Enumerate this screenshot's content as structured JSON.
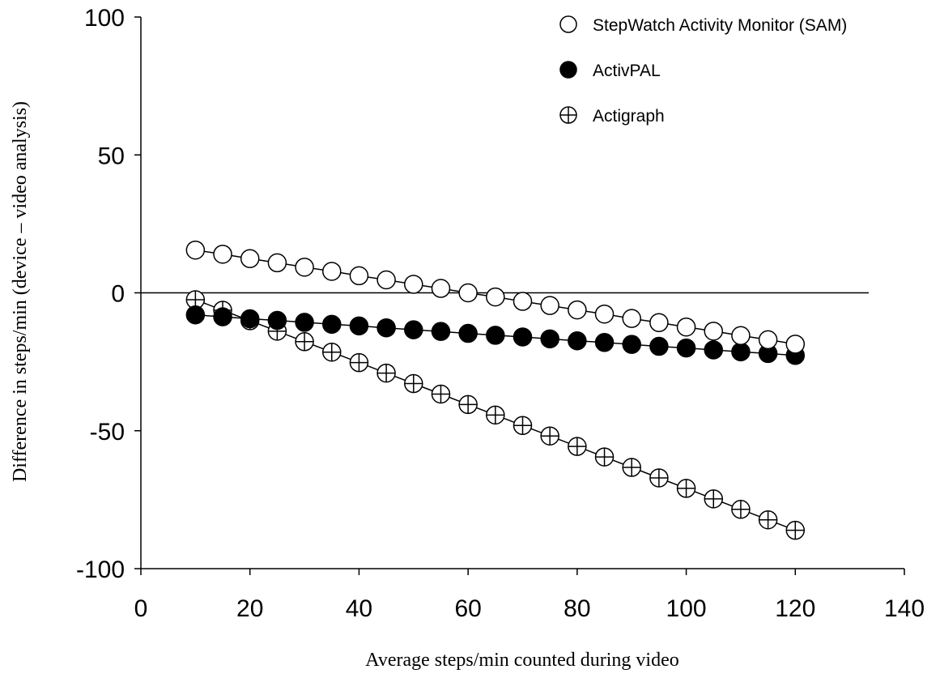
{
  "chart_data": {
    "type": "scatter",
    "xlabel": "Average steps/min counted during video",
    "ylabel": "Difference in steps/min  (device – video analysis)",
    "xlim": [
      0,
      140
    ],
    "ylim": [
      -100,
      100
    ],
    "xticks": [
      0,
      20,
      40,
      60,
      80,
      100,
      120,
      140
    ],
    "yticks": [
      100,
      50,
      0,
      -50,
      -100
    ],
    "reference_line_y": 0,
    "grid": false,
    "legend_position": "top-right",
    "x": [
      10,
      15,
      20,
      25,
      30,
      35,
      40,
      45,
      50,
      55,
      60,
      65,
      70,
      75,
      80,
      85,
      90,
      95,
      100,
      105,
      110,
      115,
      120
    ],
    "series": [
      {
        "name": "StepWatch Activity Monitor (SAM)",
        "marker": "open-circle",
        "values": [
          15.5,
          14.0,
          12.4,
          10.9,
          9.3,
          7.8,
          6.2,
          4.7,
          3.1,
          1.6,
          0.0,
          -1.5,
          -3.1,
          -4.6,
          -6.2,
          -7.7,
          -9.3,
          -10.8,
          -12.4,
          -13.9,
          -15.5,
          -17.0,
          -18.6
        ]
      },
      {
        "name": "ActivPAL",
        "marker": "filled-circle",
        "values": [
          -8.0,
          -8.7,
          -9.4,
          -10.0,
          -10.7,
          -11.4,
          -12.0,
          -12.7,
          -13.4,
          -14.0,
          -14.7,
          -15.4,
          -16.0,
          -16.7,
          -17.4,
          -18.0,
          -18.7,
          -19.4,
          -20.0,
          -20.7,
          -21.4,
          -22.0,
          -22.7
        ]
      },
      {
        "name": "Actigraph",
        "marker": "crossed-circle",
        "values": [
          -2.5,
          -6.3,
          -10.1,
          -13.9,
          -17.7,
          -21.5,
          -25.3,
          -29.1,
          -32.9,
          -36.7,
          -40.5,
          -44.3,
          -48.1,
          -51.9,
          -55.7,
          -59.5,
          -63.3,
          -67.1,
          -70.9,
          -74.7,
          -78.5,
          -82.3,
          -86.1
        ]
      }
    ]
  }
}
